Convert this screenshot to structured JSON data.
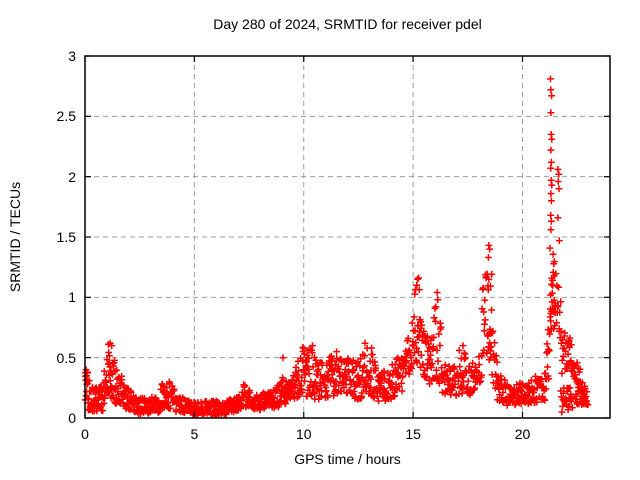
{
  "chart_data": {
    "type": "scatter",
    "title": "Day 280 of 2024, SRMTID for receiver pdel",
    "xlabel": "GPS time / hours",
    "ylabel": "SRMTID / TECUs",
    "xlim": [
      0,
      24
    ],
    "ylim": [
      0,
      3
    ],
    "xticks": [
      0,
      5,
      10,
      15,
      20
    ],
    "yticks": [
      0,
      0.5,
      1,
      1.5,
      2,
      2.5,
      3
    ],
    "grid": "dashed gray lines at major ticks",
    "legend": "none",
    "marker": "plus",
    "marker_color": "#ff0000",
    "grid_color": "#9c9c9c",
    "border_color": "#000000",
    "bands_format": [
      "x_start_hr",
      "x_end_hr",
      "y_low_at_start",
      "y_high_at_start",
      "y_low_at_end",
      "y_high_at_end",
      "n_points"
    ],
    "bands": [
      [
        0.0,
        0.3,
        0.07,
        0.42,
        0.06,
        0.3,
        26
      ],
      [
        0.3,
        0.85,
        0.05,
        0.26,
        0.06,
        0.3,
        40
      ],
      [
        0.85,
        1.05,
        0.1,
        0.42,
        0.18,
        0.58,
        16
      ],
      [
        1.05,
        1.35,
        0.18,
        0.63,
        0.15,
        0.5,
        24
      ],
      [
        1.35,
        1.75,
        0.12,
        0.45,
        0.1,
        0.32,
        28
      ],
      [
        1.75,
        2.3,
        0.08,
        0.28,
        0.05,
        0.2,
        36
      ],
      [
        2.3,
        3.45,
        0.03,
        0.17,
        0.04,
        0.18,
        72
      ],
      [
        3.45,
        3.75,
        0.07,
        0.26,
        0.1,
        0.35,
        20
      ],
      [
        3.75,
        4.15,
        0.08,
        0.33,
        0.06,
        0.22,
        26
      ],
      [
        4.15,
        4.7,
        0.05,
        0.18,
        0.04,
        0.16,
        34
      ],
      [
        4.7,
        6.5,
        0.02,
        0.14,
        0.03,
        0.15,
        110
      ],
      [
        6.5,
        7.15,
        0.04,
        0.17,
        0.06,
        0.2,
        40
      ],
      [
        7.15,
        7.6,
        0.08,
        0.3,
        0.08,
        0.25,
        28
      ],
      [
        7.6,
        8.65,
        0.06,
        0.2,
        0.08,
        0.24,
        64
      ],
      [
        8.65,
        9.0,
        0.08,
        0.28,
        0.1,
        0.33,
        22
      ],
      [
        9.0,
        9.15,
        0.15,
        0.5,
        0.12,
        0.35,
        10
      ],
      [
        9.15,
        9.55,
        0.1,
        0.32,
        0.12,
        0.36,
        26
      ],
      [
        9.55,
        9.95,
        0.15,
        0.48,
        0.18,
        0.5,
        28
      ],
      [
        9.95,
        10.65,
        0.18,
        0.6,
        0.15,
        0.55,
        48
      ],
      [
        10.65,
        11.25,
        0.15,
        0.48,
        0.18,
        0.52,
        40
      ],
      [
        11.25,
        11.85,
        0.18,
        0.55,
        0.2,
        0.5,
        40
      ],
      [
        11.85,
        12.45,
        0.2,
        0.55,
        0.15,
        0.45,
        40
      ],
      [
        12.45,
        12.95,
        0.15,
        0.5,
        0.18,
        0.62,
        32
      ],
      [
        12.95,
        13.35,
        0.18,
        0.6,
        0.15,
        0.45,
        26
      ],
      [
        13.35,
        14.0,
        0.13,
        0.38,
        0.15,
        0.42,
        42
      ],
      [
        14.0,
        14.6,
        0.16,
        0.45,
        0.22,
        0.55,
        38
      ],
      [
        14.6,
        15.05,
        0.28,
        0.65,
        0.38,
        0.92,
        28
      ],
      [
        15.05,
        15.45,
        0.4,
        1.16,
        0.42,
        1.0,
        26
      ],
      [
        15.45,
        15.75,
        0.32,
        0.85,
        0.3,
        0.62,
        20
      ],
      [
        15.75,
        15.95,
        0.28,
        0.6,
        0.32,
        0.75,
        14
      ],
      [
        15.95,
        16.3,
        0.3,
        1.05,
        0.28,
        0.8,
        20
      ],
      [
        16.3,
        17.1,
        0.2,
        0.45,
        0.18,
        0.42,
        48
      ],
      [
        17.1,
        17.55,
        0.2,
        0.62,
        0.2,
        0.5,
        26
      ],
      [
        17.55,
        18.15,
        0.18,
        0.45,
        0.3,
        0.6,
        36
      ],
      [
        18.15,
        18.4,
        0.4,
        1.1,
        0.55,
        1.35,
        16
      ],
      [
        18.4,
        18.6,
        0.5,
        1.44,
        0.45,
        1.2,
        18
      ],
      [
        18.6,
        18.85,
        0.3,
        0.95,
        0.2,
        0.5,
        14
      ],
      [
        18.85,
        19.3,
        0.14,
        0.38,
        0.12,
        0.3,
        26
      ],
      [
        19.3,
        20.4,
        0.1,
        0.28,
        0.12,
        0.3,
        66
      ],
      [
        20.4,
        21.1,
        0.12,
        0.34,
        0.15,
        0.38,
        42
      ],
      [
        21.1,
        21.25,
        0.2,
        0.6,
        0.35,
        0.9,
        9
      ],
      [
        21.25,
        21.5,
        0.7,
        1.55,
        0.75,
        1.5,
        28
      ],
      [
        21.5,
        21.75,
        0.8,
        1.25,
        0.6,
        1.05,
        13
      ],
      [
        21.75,
        22.2,
        0.35,
        0.85,
        0.4,
        0.68,
        24
      ],
      [
        21.75,
        22.3,
        0.04,
        0.26,
        0.08,
        0.26,
        26
      ],
      [
        22.2,
        22.95,
        0.4,
        0.66,
        0.1,
        0.22,
        42
      ],
      [
        22.4,
        23.0,
        0.1,
        0.3,
        0.1,
        0.25,
        24
      ]
    ],
    "points_format": [
      "x_hr",
      "y_tecu"
    ],
    "points": [
      [
        21.28,
        2.81
      ],
      [
        21.3,
        2.72
      ],
      [
        21.33,
        2.67
      ],
      [
        21.3,
        2.53
      ],
      [
        21.31,
        2.35
      ],
      [
        21.34,
        2.31
      ],
      [
        21.3,
        2.22
      ],
      [
        21.32,
        2.12
      ],
      [
        21.29,
        2.07
      ],
      [
        21.31,
        1.97
      ],
      [
        21.34,
        1.93
      ],
      [
        21.3,
        1.86
      ],
      [
        21.32,
        1.8
      ],
      [
        21.29,
        1.68
      ],
      [
        21.32,
        1.63
      ],
      [
        21.3,
        1.56
      ],
      [
        21.62,
        2.06
      ],
      [
        21.66,
        2.02
      ],
      [
        21.63,
        1.96
      ],
      [
        21.67,
        1.9
      ],
      [
        21.62,
        1.66
      ],
      [
        21.68,
        1.47
      ],
      [
        18.46,
        1.43
      ],
      [
        18.5,
        1.4
      ],
      [
        18.44,
        1.33
      ],
      [
        15.2,
        1.15
      ],
      [
        15.17,
        1.1
      ],
      [
        15.25,
        1.16
      ],
      [
        16.1,
        1.04
      ],
      [
        16.13,
        0.98
      ],
      [
        1.15,
        0.62
      ],
      [
        1.22,
        0.6
      ],
      [
        12.8,
        0.62
      ],
      [
        10.4,
        0.6
      ],
      [
        13.1,
        0.58
      ],
      [
        11.5,
        0.55
      ],
      [
        17.28,
        0.6
      ],
      [
        9.05,
        0.5
      ],
      [
        21.15,
        0.55
      ],
      [
        0.05,
        0.4
      ],
      [
        0.1,
        0.38
      ]
    ]
  }
}
